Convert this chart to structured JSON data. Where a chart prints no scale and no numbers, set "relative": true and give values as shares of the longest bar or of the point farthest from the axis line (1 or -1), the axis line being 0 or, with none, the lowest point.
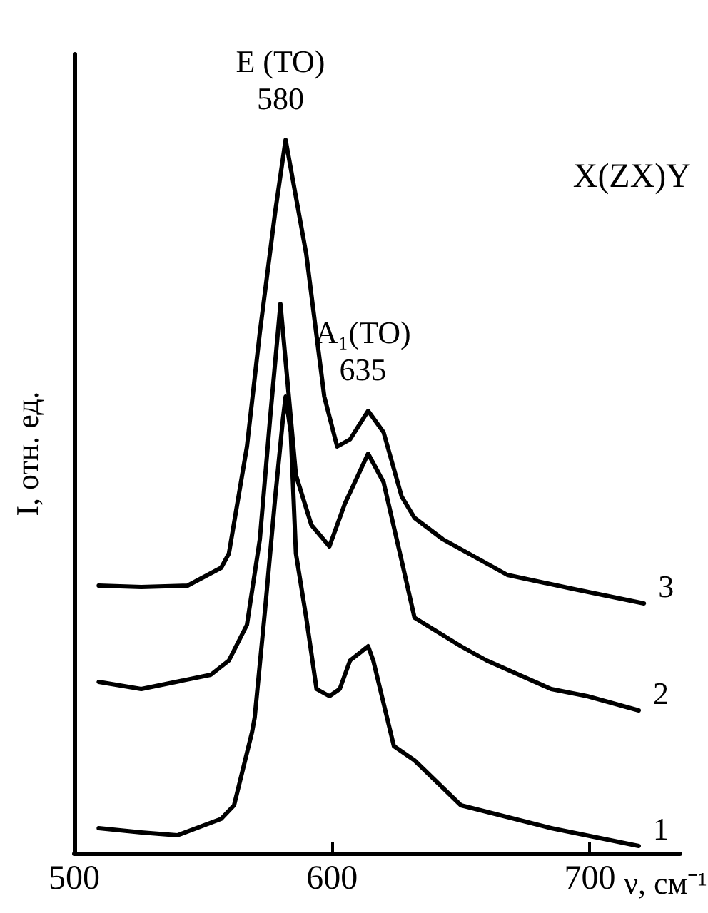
{
  "chart_data": {
    "type": "line",
    "relative": true,
    "xlabel": "ν, см⁻¹",
    "ylabel": "I, отн. ед.",
    "xlim": [
      500,
      735
    ],
    "xticks": [
      500,
      600,
      700
    ],
    "grid": false,
    "legend": false,
    "marker": "none",
    "line_style": "solid",
    "annotations": [
      {
        "text": "E (TO)\n580",
        "x": 580,
        "y": 1.0
      },
      {
        "text": "A₁(TO)\n635",
        "x": 612,
        "y": 0.62
      },
      "X(ZX)Y"
    ],
    "series": [
      {
        "name": "1",
        "color": "#000000",
        "x": [
          509.5,
          526,
          540,
          557,
          562,
          569,
          570,
          574,
          578,
          581,
          582,
          584,
          586,
          590,
          594,
          599,
          603,
          607,
          614,
          616,
          624,
          632,
          650,
          685,
          719
        ],
        "values": [
          0.035,
          0.029,
          0.025,
          0.048,
          0.067,
          0.17,
          0.19,
          0.34,
          0.5,
          0.61,
          0.64,
          0.59,
          0.42,
          0.33,
          0.23,
          0.22,
          0.23,
          0.27,
          0.29,
          0.27,
          0.15,
          0.13,
          0.067,
          0.035,
          0.01
        ]
      },
      {
        "name": "2",
        "color": "#000000",
        "x": [
          509.5,
          526,
          553,
          560,
          567,
          572,
          576,
          580,
          583,
          586,
          592,
          599,
          605,
          614,
          620,
          627,
          632,
          650,
          660,
          685,
          699,
          719
        ],
        "values": [
          0.24,
          0.23,
          0.25,
          0.27,
          0.32,
          0.44,
          0.61,
          0.77,
          0.65,
          0.53,
          0.46,
          0.43,
          0.49,
          0.56,
          0.52,
          0.41,
          0.33,
          0.29,
          0.27,
          0.23,
          0.22,
          0.2
        ]
      },
      {
        "name": "3",
        "color": "#000000",
        "x": [
          509.5,
          526,
          544,
          557,
          560,
          567,
          572,
          578,
          582,
          586,
          590,
          597,
          602,
          607,
          614,
          620,
          627,
          632,
          643,
          668,
          694,
          721
        ],
        "values": [
          0.375,
          0.373,
          0.375,
          0.4,
          0.42,
          0.57,
          0.73,
          0.9,
          1.0,
          0.92,
          0.84,
          0.64,
          0.57,
          0.58,
          0.62,
          0.59,
          0.5,
          0.47,
          0.44,
          0.39,
          0.37,
          0.35
        ]
      }
    ]
  }
}
